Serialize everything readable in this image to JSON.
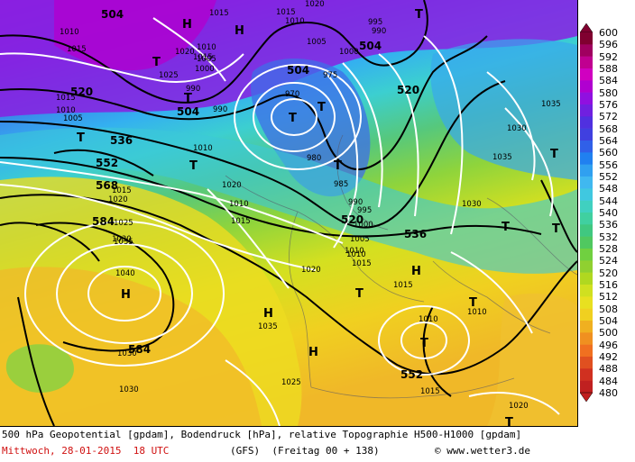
{
  "map": {
    "caption_line1": "500 hPa Geopotential [gpdam], Bodendruck [hPa], relative Topographie H500-H1000 [gpdam]",
    "date": "Mittwoch, 28-01-2015  18 UTC",
    "run": "(GFS)  (Freitag 00 + 138)",
    "copyright": "© www.wetter3.de",
    "geopotential_labels": [
      {
        "text": "504"
      },
      {
        "text": "504"
      },
      {
        "text": "504"
      },
      {
        "text": "504"
      },
      {
        "text": "520"
      },
      {
        "text": "520"
      },
      {
        "text": "520"
      },
      {
        "text": "536"
      },
      {
        "text": "536"
      },
      {
        "text": "552"
      },
      {
        "text": "552"
      },
      {
        "text": "568"
      },
      {
        "text": "584"
      },
      {
        "text": "584"
      }
    ],
    "pressure_labels": [
      "1015",
      "1010",
      "1015",
      "1025",
      "1020",
      "1015",
      "1010",
      "1005",
      "1000",
      "990",
      "990",
      "1015",
      "1010",
      "1005",
      "1000",
      "995",
      "990",
      "1020",
      "975",
      "970",
      "980",
      "985",
      "990",
      "995",
      "1000",
      "1005",
      "1010",
      "1015",
      "1015",
      "1010",
      "1005",
      "1010",
      "1015",
      "1020",
      "1025",
      "1030",
      "1035",
      "1040",
      "1030",
      "1030",
      "1035",
      "1020",
      "1015",
      "1010",
      "1010",
      "1010",
      "1015",
      "1020",
      "1025",
      "1030",
      "1035",
      "1035",
      "1030",
      "1010",
      "1015",
      "1020"
    ],
    "pressure_centers": [
      {
        "type": "H"
      },
      {
        "type": "H"
      },
      {
        "type": "T"
      },
      {
        "type": "T"
      },
      {
        "type": "T"
      },
      {
        "type": "T"
      },
      {
        "type": "T"
      },
      {
        "type": "T"
      },
      {
        "type": "T"
      },
      {
        "type": "T"
      },
      {
        "type": "T"
      },
      {
        "type": "T"
      },
      {
        "type": "H"
      },
      {
        "type": "T"
      },
      {
        "type": "H"
      },
      {
        "type": "H"
      },
      {
        "type": "H"
      },
      {
        "type": "T"
      },
      {
        "type": "T"
      },
      {
        "type": "T"
      },
      {
        "type": "T"
      }
    ]
  },
  "color_scale": {
    "labels": [
      "600",
      "596",
      "592",
      "588",
      "584",
      "580",
      "576",
      "572",
      "568",
      "564",
      "560",
      "556",
      "552",
      "548",
      "544",
      "540",
      "536",
      "532",
      "528",
      "524",
      "520",
      "516",
      "512",
      "508",
      "504",
      "500",
      "496",
      "492",
      "488",
      "484",
      "480"
    ],
    "colors": [
      "#800030",
      "#a00060",
      "#c00090",
      "#d000c0",
      "#b000d0",
      "#9010e0",
      "#7020e0",
      "#5030e0",
      "#4040e0",
      "#3060e8",
      "#2080f0",
      "#30a0f0",
      "#40b8f0",
      "#40c8e0",
      "#40d0c0",
      "#40d0a0",
      "#40c880",
      "#50c860",
      "#70d040",
      "#90d030",
      "#b0d820",
      "#d0e020",
      "#e8e020",
      "#f0d020",
      "#f0b020",
      "#f09020",
      "#f07020",
      "#e05020",
      "#d03020",
      "#c02020"
    ]
  }
}
